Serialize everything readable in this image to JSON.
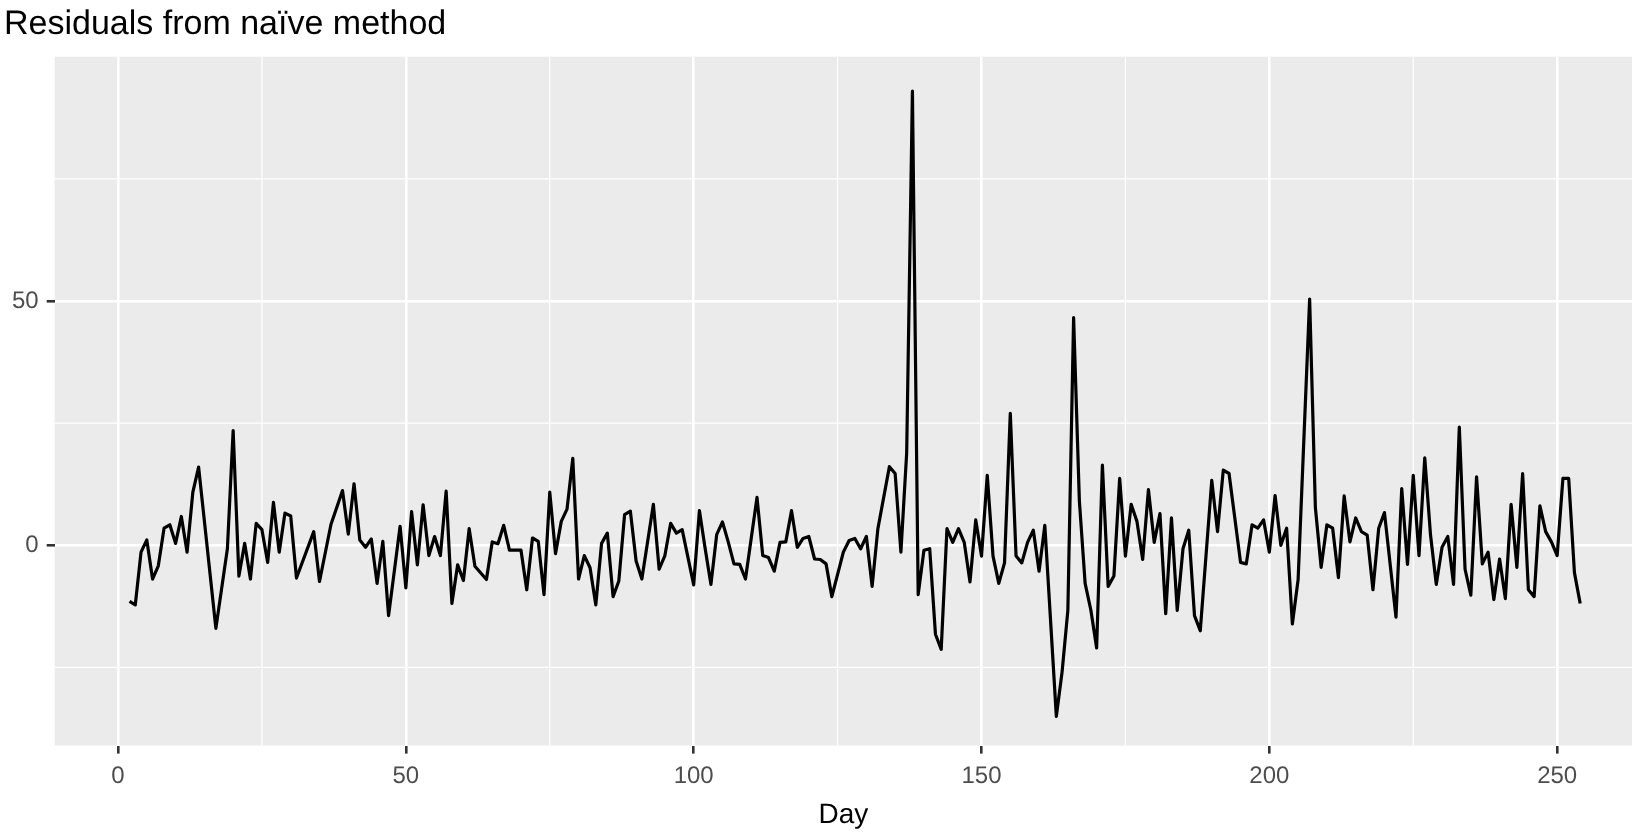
{
  "chart_data": {
    "type": "line",
    "title": "Residuals from naïve method",
    "xlabel": "Day",
    "xlim": [
      -11,
      263
    ],
    "ylim": [
      -41,
      100
    ],
    "xticks": [
      0,
      50,
      100,
      150,
      200,
      250
    ],
    "yticks": [
      0,
      50
    ],
    "grid": true,
    "legend": false,
    "marker": "none",
    "line_style": "solid",
    "x": [
      2,
      3,
      4,
      5,
      6,
      7,
      8,
      9,
      10,
      11,
      12,
      13,
      14,
      17,
      19,
      20,
      21,
      22,
      23,
      24,
      25,
      26,
      27,
      28,
      29,
      30,
      31,
      34,
      35,
      37,
      39,
      40,
      41,
      42,
      43,
      44,
      45,
      46,
      47,
      49,
      50,
      51,
      52,
      53,
      54,
      55,
      56,
      57,
      58,
      59,
      60,
      61,
      62,
      64,
      65,
      66,
      67,
      68,
      70,
      71,
      72,
      73,
      74,
      75,
      76,
      77,
      78,
      79,
      80,
      81,
      82,
      83,
      84,
      85,
      86,
      87,
      88,
      89,
      90,
      91,
      93,
      94,
      95,
      96,
      97,
      98,
      100,
      101,
      102,
      103,
      104,
      105,
      106,
      107,
      108,
      109,
      111,
      112,
      113,
      114,
      115,
      116,
      117,
      118,
      119,
      120,
      121,
      122,
      123,
      124,
      126,
      127,
      128,
      129,
      130,
      131,
      132,
      134,
      135,
      136,
      137,
      138,
      139,
      140,
      141,
      142,
      143,
      144,
      145,
      146,
      147,
      148,
      149,
      150,
      151,
      152,
      153,
      154,
      155,
      156,
      157,
      158,
      159,
      160,
      161,
      163,
      164,
      165,
      166,
      167,
      168,
      169,
      170,
      171,
      172,
      173,
      174,
      175,
      176,
      177,
      178,
      179,
      180,
      181,
      182,
      183,
      184,
      185,
      186,
      187,
      188,
      190,
      191,
      192,
      193,
      195,
      196,
      197,
      198,
      199,
      200,
      201,
      202,
      203,
      204,
      205,
      207,
      208,
      209,
      210,
      211,
      212,
      213,
      214,
      215,
      216,
      217,
      218,
      219,
      220,
      222,
      223,
      224,
      225,
      226,
      227,
      228,
      229,
      230,
      231,
      232,
      233,
      234,
      235,
      236,
      237,
      238,
      239,
      240,
      241,
      242,
      243,
      244,
      245,
      246,
      247,
      248,
      249,
      250,
      251,
      252,
      253,
      254
    ],
    "series": [
      {
        "color": "#000000",
        "values": [
          -11.5,
          -12.2,
          -1.4,
          1.1,
          -6.9,
          -4.2,
          3.5,
          4.2,
          0.4,
          5.9,
          -1.4,
          10.9,
          16,
          -17,
          -0.7,
          23.5,
          -6.3,
          0.4,
          -6.9,
          4.5,
          3.2,
          -3.5,
          8.8,
          -1.4,
          6.6,
          6,
          -6.7,
          2.8,
          -7.4,
          4.3,
          11.2,
          2.3,
          12.6,
          1.1,
          -0.4,
          1.3,
          -7.8,
          0.8,
          -14.4,
          3.9,
          -8.7,
          6.9,
          -4,
          8.3,
          -2.1,
          1.8,
          -2.1,
          11.1,
          -11.9,
          -4,
          -7.2,
          3.4,
          -4.3,
          -7,
          0.7,
          0.3,
          4.1,
          -1,
          -1,
          -9.1,
          1.5,
          0.8,
          -10.1,
          10.9,
          -1.7,
          4.9,
          7.4,
          17.8,
          -6.9,
          -2.1,
          -4.6,
          -12.2,
          0.4,
          2.5,
          -10.5,
          -7.3,
          6.3,
          7,
          -3.2,
          -6.9,
          8.4,
          -4.9,
          -2.1,
          4.5,
          2.5,
          3.2,
          -8.1,
          7.1,
          -0.7,
          -8,
          2.2,
          4.8,
          0.7,
          -3.8,
          -3.9,
          -6.9,
          9.8,
          -2.1,
          -2.5,
          -5.3,
          0.6,
          0.7,
          7.1,
          -0.4,
          1.4,
          1.8,
          -2.8,
          -2.9,
          -3.8,
          -10.5,
          -1.4,
          1,
          1.4,
          -0.7,
          1.8,
          -8.4,
          3.4,
          16.1,
          14.7,
          -1.4,
          18.9,
          93,
          -10.1,
          -1,
          -0.7,
          -18.2,
          -21.3,
          3.4,
          0.6,
          3.4,
          0.6,
          -7.5,
          5.2,
          -2.2,
          14.3,
          -2.2,
          -7.8,
          -3.6,
          27,
          -2.2,
          -3.6,
          0.6,
          3.1,
          -5.3,
          4.1,
          -35,
          -25.9,
          -13.3,
          46.6,
          9.1,
          -7.8,
          -13.3,
          -21,
          16.4,
          -8.4,
          -6.3,
          13.7,
          -2.2,
          8.4,
          4.9,
          -2.9,
          11.4,
          0.6,
          6.5,
          -14,
          5.6,
          -13.3,
          -0.7,
          3.1,
          -14.4,
          -17.5,
          13.3,
          2.8,
          15.4,
          14.7,
          -3.5,
          -3.8,
          4.2,
          3.5,
          5.2,
          -1.4,
          10.2,
          0,
          3.5,
          -16.1,
          -7,
          50.4,
          7.7,
          -4.5,
          4.2,
          3.5,
          -6.6,
          10.1,
          0.7,
          5.6,
          2.8,
          2.1,
          -9.1,
          3.5,
          6.7,
          -14.7,
          11.6,
          -3.9,
          14.3,
          -2.1,
          17.9,
          2.1,
          -8,
          -0.4,
          1.8,
          -8,
          24.2,
          -4.9,
          -10.2,
          14,
          -3.8,
          -1.4,
          -11.1,
          -2.8,
          -10.9,
          8.4,
          -4.5,
          14.7,
          -9.1,
          -10.5,
          8.1,
          2.8,
          0.7,
          -2.1,
          13.7,
          13.7,
          -5.6,
          -11.9
        ]
      }
    ]
  }
}
